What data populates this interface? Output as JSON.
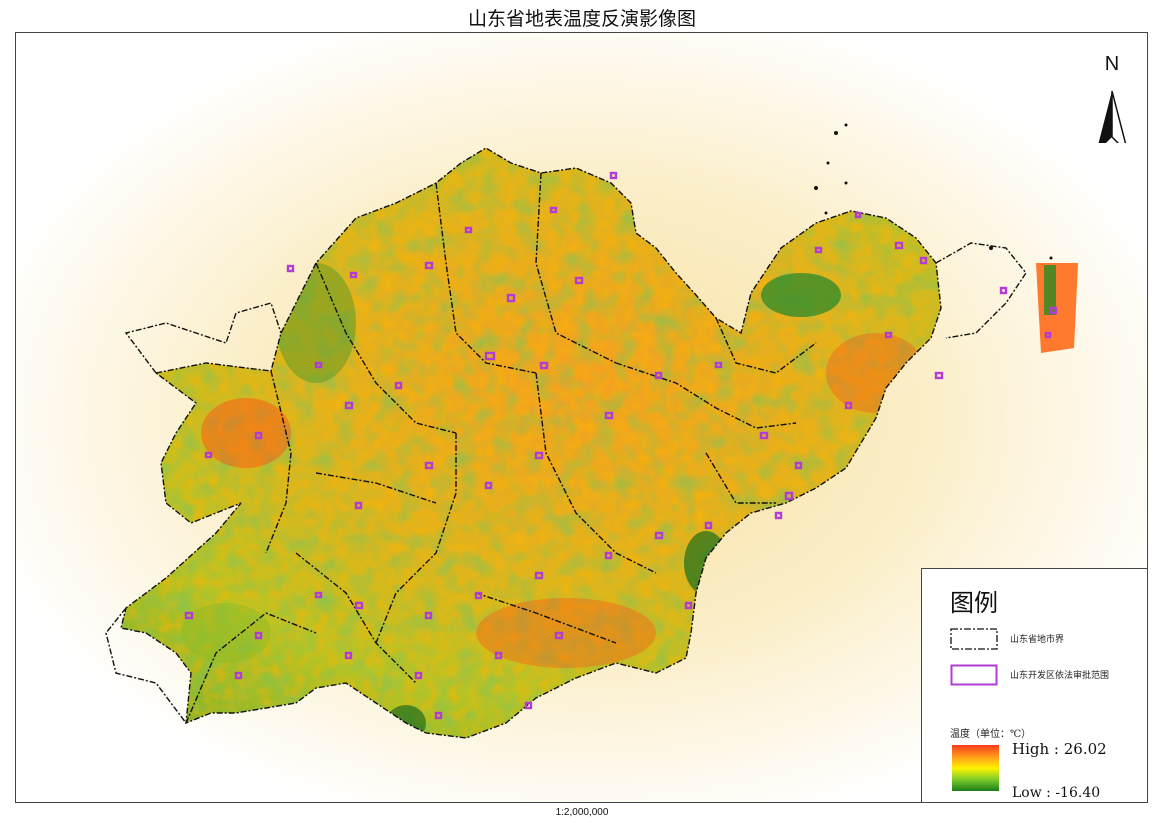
{
  "map": {
    "title": "山东省地表温度反演影像图",
    "scale_text": "1:2,000,000",
    "north_label": "N"
  },
  "legend": {
    "title": "图例",
    "boundary_label": "山东省地市界",
    "zone_label": "山东开发区依法审批范围",
    "temp_title": "温度（单位：℃）",
    "high_label": "High : 26.02",
    "low_label": "Low : -16.40"
  },
  "colors": {
    "hot": "#ff3a1a",
    "warm": "#ff9a1c",
    "mid": "#fff200",
    "cool": "#7ccd2a",
    "cold": "#1c7c18",
    "zone_outline": "#b23cd6",
    "halo": "#fbeec0"
  }
}
